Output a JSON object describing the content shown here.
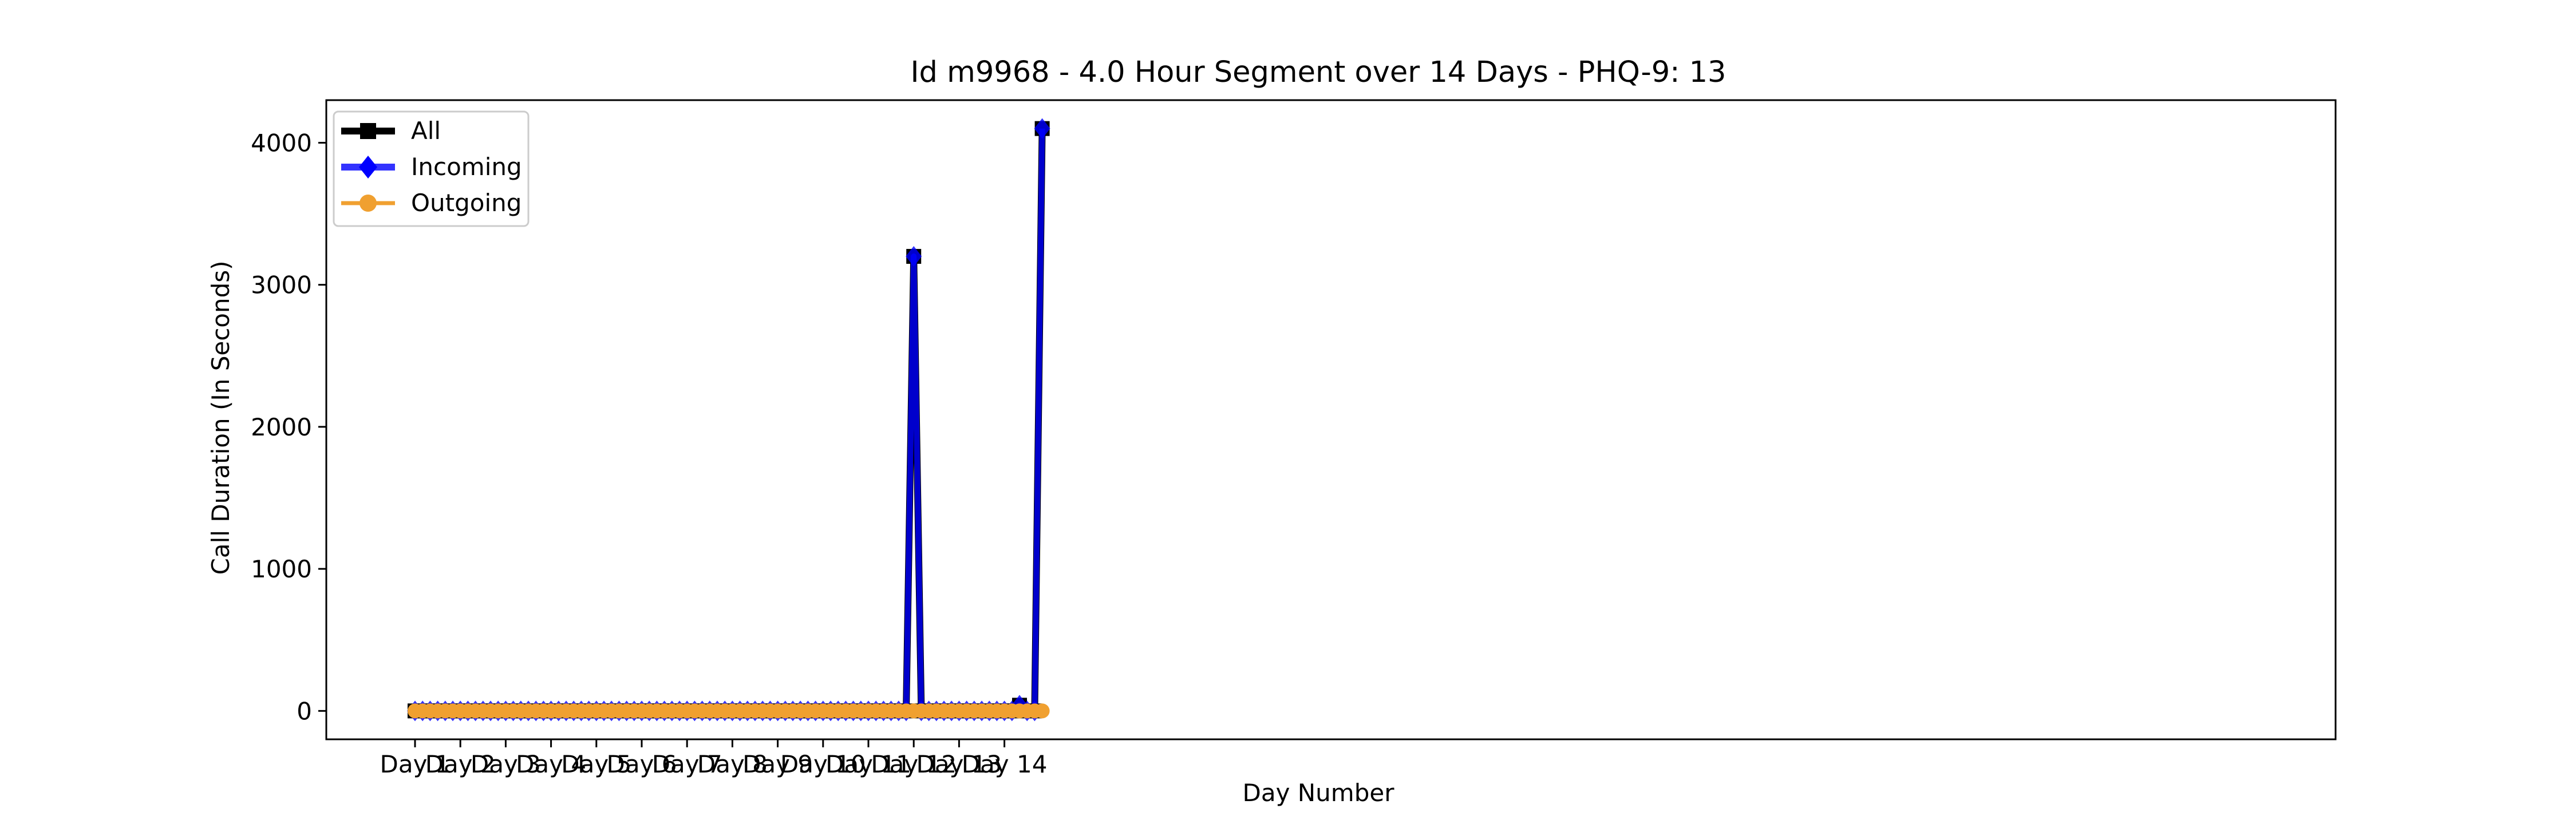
{
  "chart_data": {
    "type": "line",
    "title": "Id m9968 - 4.0 Hour Segment over 14 Days - PHQ-9: 13",
    "xlabel": "Day Number",
    "ylabel": "Call Duration (In Seconds)",
    "x_tick_labels": [
      "Day 1",
      "Day 2",
      "Day 3",
      "Day 4",
      "Day 5",
      "Day 6",
      "Day 7",
      "Day 8",
      "Day 9",
      "Day 10",
      "Day 11",
      "Day 12",
      "Day 13",
      "Day 14"
    ],
    "y_ticks": [
      0,
      1000,
      2000,
      3000,
      4000
    ],
    "y_tick_labels": [
      "0",
      "1000",
      "2000",
      "3000",
      "4000"
    ],
    "ylim": [
      -200,
      4300
    ],
    "segments_per_day": 6,
    "num_points": 84,
    "legend_position": "upper-left",
    "grid": false,
    "series": [
      {
        "name": "All",
        "color": "#000000",
        "marker": "square",
        "points": {
          "66": 3200,
          "80": 40,
          "83": 4100
        },
        "default": 0
      },
      {
        "name": "Incoming",
        "color": "#0000ff",
        "marker": "diamond",
        "points": {
          "66": 3200,
          "80": 40,
          "83": 4100
        },
        "default": 0
      },
      {
        "name": "Outgoing",
        "color": "#f0a030",
        "marker": "circle",
        "points": {},
        "default": 0
      }
    ]
  }
}
